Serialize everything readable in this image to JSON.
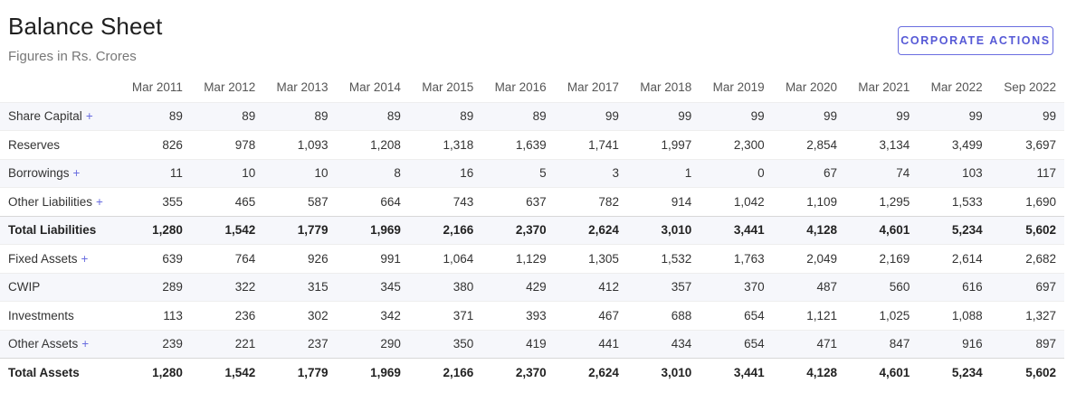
{
  "header": {
    "title": "Balance Sheet",
    "subtitle": "Figures in Rs. Crores",
    "action_label": "CORPORATE ACTIONS"
  },
  "colors": {
    "accent": "#5659d6",
    "stripe": "#f6f7fb"
  },
  "table": {
    "columns": [
      "Mar 2011",
      "Mar 2012",
      "Mar 2013",
      "Mar 2014",
      "Mar 2015",
      "Mar 2016",
      "Mar 2017",
      "Mar 2018",
      "Mar 2019",
      "Mar 2020",
      "Mar 2021",
      "Mar 2022",
      "Sep 2022"
    ],
    "rows": [
      {
        "label": "Share Capital",
        "expandable": "+",
        "values": [
          "89",
          "89",
          "89",
          "89",
          "89",
          "89",
          "99",
          "99",
          "99",
          "99",
          "99",
          "99",
          "99"
        ]
      },
      {
        "label": "Reserves",
        "values": [
          "826",
          "978",
          "1,093",
          "1,208",
          "1,318",
          "1,639",
          "1,741",
          "1,997",
          "2,300",
          "2,854",
          "3,134",
          "3,499",
          "3,697"
        ]
      },
      {
        "label": "Borrowings",
        "expandable": "+",
        "values": [
          "11",
          "10",
          "10",
          "8",
          "16",
          "5",
          "3",
          "1",
          "0",
          "67",
          "74",
          "103",
          "117"
        ]
      },
      {
        "label": "Other Liabilities",
        "expandable": "+",
        "values": [
          "355",
          "465",
          "587",
          "664",
          "743",
          "637",
          "782",
          "914",
          "1,042",
          "1,109",
          "1,295",
          "1,533",
          "1,690"
        ]
      },
      {
        "label": "Total Liabilities",
        "values": [
          "1,280",
          "1,542",
          "1,779",
          "1,969",
          "2,166",
          "2,370",
          "2,624",
          "3,010",
          "3,441",
          "4,128",
          "4,601",
          "5,234",
          "5,602"
        ]
      },
      {
        "label": "Fixed Assets",
        "expandable": "+",
        "values": [
          "639",
          "764",
          "926",
          "991",
          "1,064",
          "1,129",
          "1,305",
          "1,532",
          "1,763",
          "2,049",
          "2,169",
          "2,614",
          "2,682"
        ]
      },
      {
        "label": "CWIP",
        "values": [
          "289",
          "322",
          "315",
          "345",
          "380",
          "429",
          "412",
          "357",
          "370",
          "487",
          "560",
          "616",
          "697"
        ]
      },
      {
        "label": "Investments",
        "values": [
          "113",
          "236",
          "302",
          "342",
          "371",
          "393",
          "467",
          "688",
          "654",
          "1,121",
          "1,025",
          "1,088",
          "1,327"
        ]
      },
      {
        "label": "Other Assets",
        "expandable": "+",
        "values": [
          "239",
          "221",
          "237",
          "290",
          "350",
          "419",
          "441",
          "434",
          "654",
          "471",
          "847",
          "916",
          "897"
        ]
      },
      {
        "label": "Total Assets",
        "values": [
          "1,280",
          "1,542",
          "1,779",
          "1,969",
          "2,166",
          "2,370",
          "2,624",
          "3,010",
          "3,441",
          "4,128",
          "4,601",
          "5,234",
          "5,602"
        ]
      }
    ]
  }
}
